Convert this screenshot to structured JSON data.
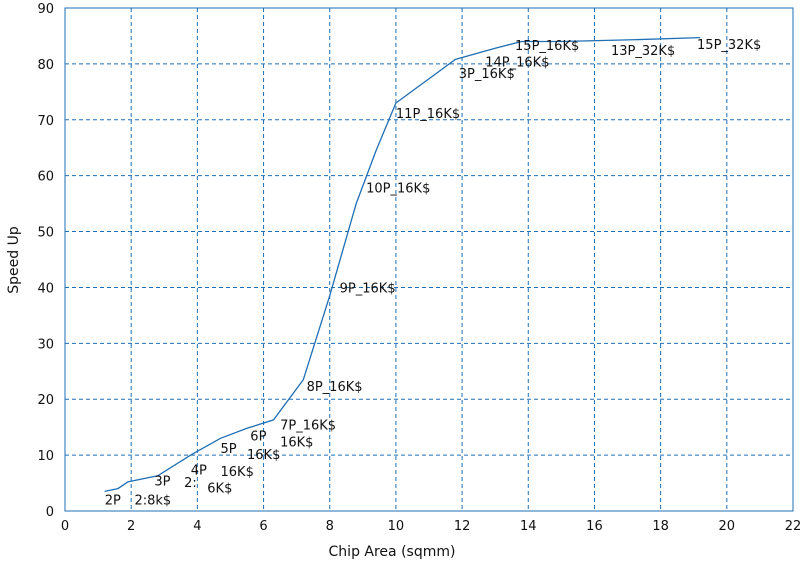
{
  "chart_data": {
    "type": "line",
    "xlabel": "Chip Area (sqmm)",
    "ylabel": "Speed Up",
    "xlim": [
      0,
      22
    ],
    "ylim": [
      0,
      90
    ],
    "xticks": [
      0,
      2,
      4,
      6,
      8,
      10,
      12,
      14,
      16,
      18,
      20,
      22
    ],
    "yticks": [
      0,
      10,
      20,
      30,
      40,
      50,
      60,
      70,
      80,
      90
    ],
    "grid": true,
    "legend": "none",
    "color": "#1f6fb5",
    "series": [
      {
        "x": [
          1.2,
          1.6,
          1.9,
          2.8,
          3.8,
          4.7,
          5.5,
          6.3,
          7.2,
          8.0,
          8.8,
          9.4,
          10.0,
          11.8,
          13.0,
          13.8,
          15.0,
          17.0,
          19.2
        ],
        "y": [
          3.5,
          4.0,
          5.2,
          6.3,
          10.0,
          13.0,
          14.8,
          16.3,
          23.5,
          38.5,
          55.0,
          64.5,
          73.0,
          80.8,
          82.8,
          84.0,
          84.0,
          84.3,
          84.7
        ]
      }
    ],
    "point_labels": [
      {
        "text": "2P",
        "x": 1.2,
        "y": 1.2
      },
      {
        "text": "2:8k$",
        "x": 2.1,
        "y": 1.2
      },
      {
        "text": "3P",
        "x": 2.7,
        "y": 4.6
      },
      {
        "text": "4P",
        "x": 3.8,
        "y": 6.5
      },
      {
        "text": "2:",
        "x": 3.6,
        "y": 4.3
      },
      {
        "text": "6K$",
        "x": 4.3,
        "y": 3.3
      },
      {
        "text": "5P",
        "x": 4.7,
        "y": 10.4
      },
      {
        "text": "16K$",
        "x": 4.7,
        "y": 6.3
      },
      {
        "text": "6P",
        "x": 5.6,
        "y": 12.6
      },
      {
        "text": "16K$",
        "x": 5.5,
        "y": 9.3
      },
      {
        "text": "7P_16K$",
        "x": 6.5,
        "y": 14.6
      },
      {
        "text": "16K$",
        "x": 6.5,
        "y": 11.5
      },
      {
        "text": "8P_16K$",
        "x": 7.3,
        "y": 21.5
      },
      {
        "text": "9P_16K$",
        "x": 8.3,
        "y": 39.1
      },
      {
        "text": "10P_16K$",
        "x": 9.1,
        "y": 57.0
      },
      {
        "text": "11P_16K$",
        "x": 10.0,
        "y": 70.3
      },
      {
        "text": "3P_16K$",
        "x": 11.9,
        "y": 77.5
      },
      {
        "text": "14P_16K$",
        "x": 12.7,
        "y": 79.5
      },
      {
        "text": "15P_16K$",
        "x": 13.6,
        "y": 82.5
      },
      {
        "text": "13P_32K$",
        "x": 16.5,
        "y": 81.6
      },
      {
        "text": "15P_32K$",
        "x": 19.1,
        "y": 82.7
      }
    ]
  }
}
